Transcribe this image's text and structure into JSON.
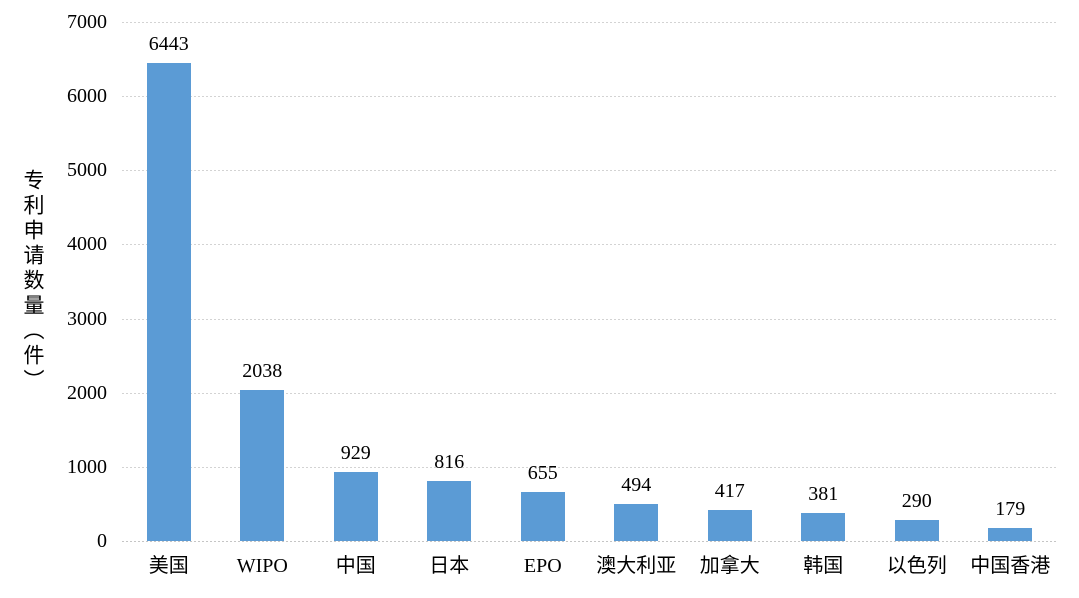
{
  "chart_data": {
    "type": "bar",
    "categories": [
      "美国",
      "WIPO",
      "中国",
      "日本",
      "EPO",
      "澳大利亚",
      "加拿大",
      "韩国",
      "以色列",
      "中国香港"
    ],
    "values": [
      6443,
      2038,
      929,
      816,
      655,
      494,
      417,
      381,
      290,
      179
    ],
    "data_labels": [
      "6443",
      "2038",
      "929",
      "816",
      "655",
      "494",
      "417",
      "381",
      "290",
      "179"
    ],
    "title": "",
    "xlabel": "",
    "ylabel": "专利申请数量（件）",
    "ylim": [
      0,
      7000
    ],
    "yticks": [
      0,
      1000,
      2000,
      3000,
      4000,
      5000,
      6000,
      7000
    ],
    "grid": true,
    "legend": false,
    "legend_position": "none"
  },
  "style": {
    "bar_color": "#5B9BD5",
    "grid_color": "#d3d3d3",
    "axis_color": "#c5c5c5",
    "text_color": "#000000",
    "background_color": "#ffffff"
  }
}
